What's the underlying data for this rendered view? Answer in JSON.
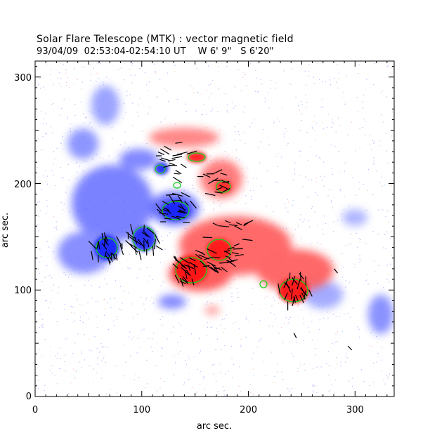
{
  "header": {
    "title": "Solar Flare Telescope (MTK) : vector magnetic field",
    "subtitle": "93/04/09  02:53:04-02:54:10 UT    W 6' 9\"   S 6'20\""
  },
  "plot": {
    "xlabel": "arc sec.",
    "ylabel": "arc sec.",
    "xlim": [
      0,
      340
    ],
    "ylim": [
      0,
      315
    ],
    "xticks": [
      "0",
      "100",
      "200",
      "300"
    ],
    "yticks": [
      "0",
      "100",
      "200",
      "300"
    ],
    "colors": {
      "positive": "#ff3b3b",
      "negative": "#3d4dff",
      "contour": "#18d018",
      "vector": "#000000",
      "frame": "#000000"
    }
  }
}
